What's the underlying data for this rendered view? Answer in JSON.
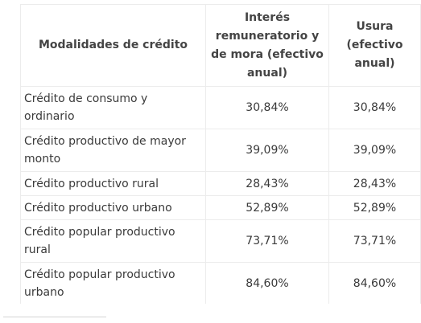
{
  "table": {
    "headers": [
      "Modalidades de crédito",
      "Interés remuneratorio y de mora (efectivo anual)",
      "Usura (efectivo anual)"
    ],
    "rows": [
      {
        "modalidad": "Crédito de consumo y ordinario",
        "interes": "30,84%",
        "usura": "30,84%"
      },
      {
        "modalidad": "Crédito productivo de mayor monto",
        "interes": "39,09%",
        "usura": "39,09%"
      },
      {
        "modalidad": "Crédito productivo rural",
        "interes": "28,43%",
        "usura": "28,43%"
      },
      {
        "modalidad": "Crédito productivo urbano",
        "interes": "52,89%",
        "usura": "52,89%"
      },
      {
        "modalidad": "Crédito popular productivo rural",
        "interes": "73,71%",
        "usura": "73,71%"
      },
      {
        "modalidad": "Crédito popular productivo urbano",
        "interes": "84,60%",
        "usura": "84,60%"
      }
    ]
  }
}
